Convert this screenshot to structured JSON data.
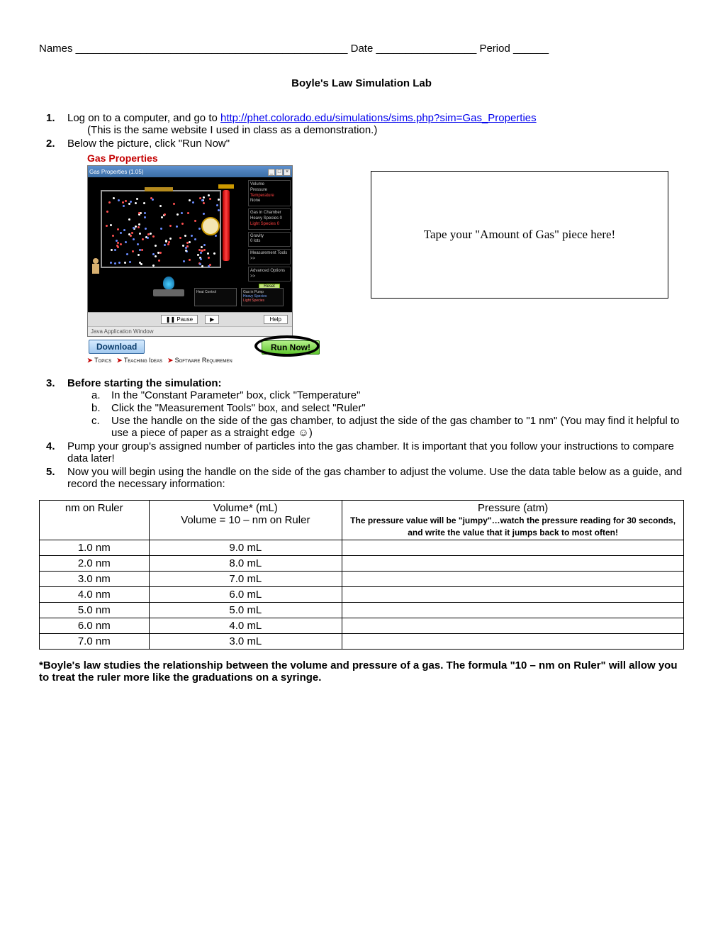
{
  "header": {
    "names_label": "Names ______________________________________________",
    "date_label": "Date _________________",
    "period_label": "Period ______"
  },
  "title": "Boyle's Law Simulation Lab",
  "steps": {
    "s1": {
      "pre": "Log on to a computer, and go to ",
      "link_text": "http://phet.colorado.edu/simulations/sims.php?sim=Gas_Properties",
      "post": "(This is the same website I used in class as a demonstration.)"
    },
    "s2": "Below the picture, click \"Run Now\"",
    "s3_head": "Before starting the simulation:",
    "s3a": "In the \"Constant Parameter\" box, click \"Temperature\"",
    "s3b": "Click the \"Measurement Tools\" box, and select \"Ruler\"",
    "s3c": "Use the handle on the side of the gas chamber, to adjust the side of the gas chamber to \"1 nm\"  (You may find it helpful to use a piece of paper as a straight edge ☺)",
    "s4": "Pump your group's assigned number of particles into the gas chamber.  It is important that you follow your instructions to compare data later!",
    "s5": "Now you will begin using the handle on the side of the gas chamber to adjust the volume.  Use the data table below as a guide, and record the necessary information:"
  },
  "sim": {
    "heading": "Gas Properties",
    "title_text": "Gas Properties (1.05)",
    "download": "Download",
    "run_now": "Run Now!",
    "topics": "Topics",
    "teaching": "Teaching Ideas",
    "software": "Software Requiremen",
    "java_bar": "Java Application Window",
    "pause": "Pause",
    "help": "Help",
    "side_panels": {
      "p1a": "Volume",
      "p1b": "Pressure",
      "p1c": "Temperature",
      "p1d": "None",
      "p2a": "Gas in Chamber",
      "p2b": "Heavy Species   0",
      "p2c": "Light Species   0",
      "p3a": "Gravity",
      "p3b": "0           lots",
      "p4": "Measurement Tools >>",
      "p5": "Advanced Options >>",
      "reset": "Reset"
    },
    "ctrl1": "Heat Control",
    "ctrl2_a": "Gas in Pump",
    "ctrl2_b": "Heavy Species",
    "ctrl2_c": "Light Species"
  },
  "tape_box": "Tape your \"Amount of Gas\" piece here!",
  "table": {
    "col1_head": "nm on Ruler",
    "col2_head_a": "Volume* (mL)",
    "col2_head_b": "Volume = 10 – nm on Ruler",
    "col3_head_a": "Pressure (atm)",
    "col3_head_b": "The pressure value will be \"jumpy\"…watch the pressure reading for 30 seconds, and write the value that it jumps back to most often!",
    "rows": [
      {
        "nm": "1.0 nm",
        "vol": "9.0 mL"
      },
      {
        "nm": "2.0 nm",
        "vol": "8.0 mL"
      },
      {
        "nm": "3.0 nm",
        "vol": "7.0 mL"
      },
      {
        "nm": "4.0 nm",
        "vol": "6.0 mL"
      },
      {
        "nm": "5.0 nm",
        "vol": "5.0 mL"
      },
      {
        "nm": "6.0 nm",
        "vol": "4.0 mL"
      },
      {
        "nm": "7.0 nm",
        "vol": "3.0 mL"
      }
    ]
  },
  "footnote": "*Boyle's law studies the relationship between the volume and pressure of a gas.  The formula \"10 – nm on Ruler\" will allow you to treat the ruler more like the graduations on a syringe.",
  "colors": {
    "link": "#0000ee",
    "red_heading": "#c40000",
    "download_bg": "#a0c8ef",
    "run_bg": "#5fc62e",
    "particle_blue": "#6a8cff",
    "particle_red": "#ff5050",
    "particle_white": "#ffffff"
  }
}
